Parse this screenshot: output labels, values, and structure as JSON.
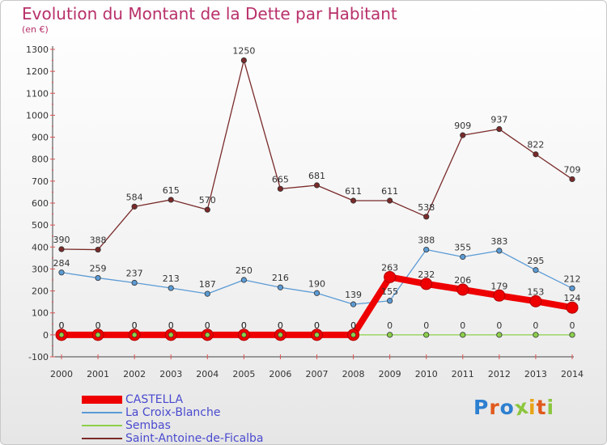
{
  "title": "Evolution du Montant de la Dette par Habitant",
  "subtitle": "(en €)",
  "logo": {
    "text": "Proxiti",
    "colors": [
      "#2d7fd0",
      "#e05a1c",
      "#2d7fd0",
      "#8cc63f",
      "#e8a317",
      "#e05a1c",
      "#8cc63f"
    ]
  },
  "chart_data": {
    "type": "line",
    "x": [
      2000,
      2001,
      2002,
      2003,
      2004,
      2005,
      2006,
      2007,
      2008,
      2009,
      2010,
      2011,
      2012,
      2013,
      2014
    ],
    "ylim": [
      -100,
      1300
    ],
    "yticks": [
      -100,
      0,
      100,
      200,
      300,
      400,
      500,
      600,
      700,
      800,
      900,
      1000,
      1100,
      1200,
      1300
    ],
    "grid": false,
    "legend_position": "bottom-left",
    "series": [
      {
        "name": "CASTELLA",
        "color": "#ee0000",
        "thick": true,
        "values": [
          0,
          0,
          0,
          0,
          0,
          0,
          0,
          0,
          0,
          263,
          232,
          206,
          179,
          153,
          124
        ],
        "labels": [
          "0",
          "0",
          "0",
          "0",
          "0",
          "0",
          "0",
          "0",
          "0",
          "263",
          "232",
          "206",
          "179",
          "153",
          "124"
        ]
      },
      {
        "name": "La Croix-Blanche",
        "color": "#5b9bd5",
        "values": [
          284,
          259,
          237,
          213,
          187,
          250,
          216,
          190,
          139,
          155,
          388,
          355,
          383,
          295,
          212
        ],
        "labels": [
          "284",
          "259",
          "237",
          "213",
          "187",
          "250",
          "216",
          "190",
          "139",
          "155",
          "388",
          "355",
          "383",
          "295",
          "212"
        ]
      },
      {
        "name": "Sembas",
        "color": "#8cd04a",
        "values": [
          0,
          0,
          0,
          0,
          0,
          0,
          0,
          0,
          0,
          0,
          0,
          0,
          0,
          0,
          0
        ],
        "labels": [
          "0",
          "0",
          "0",
          "0",
          "0",
          "0",
          "0",
          "0",
          "0",
          "0",
          "0",
          "0",
          "0",
          "0",
          "0"
        ]
      },
      {
        "name": "Saint-Antoine-de-Ficalba",
        "color": "#7a2a2a",
        "values": [
          390,
          388,
          584,
          615,
          570,
          1250,
          665,
          681,
          611,
          611,
          538,
          909,
          937,
          822,
          709
        ],
        "labels": [
          "390",
          "388",
          "584",
          "615",
          "570",
          "1250",
          "665",
          "681",
          "611",
          "611",
          "538",
          "909",
          "937",
          "822",
          "709"
        ]
      }
    ]
  }
}
